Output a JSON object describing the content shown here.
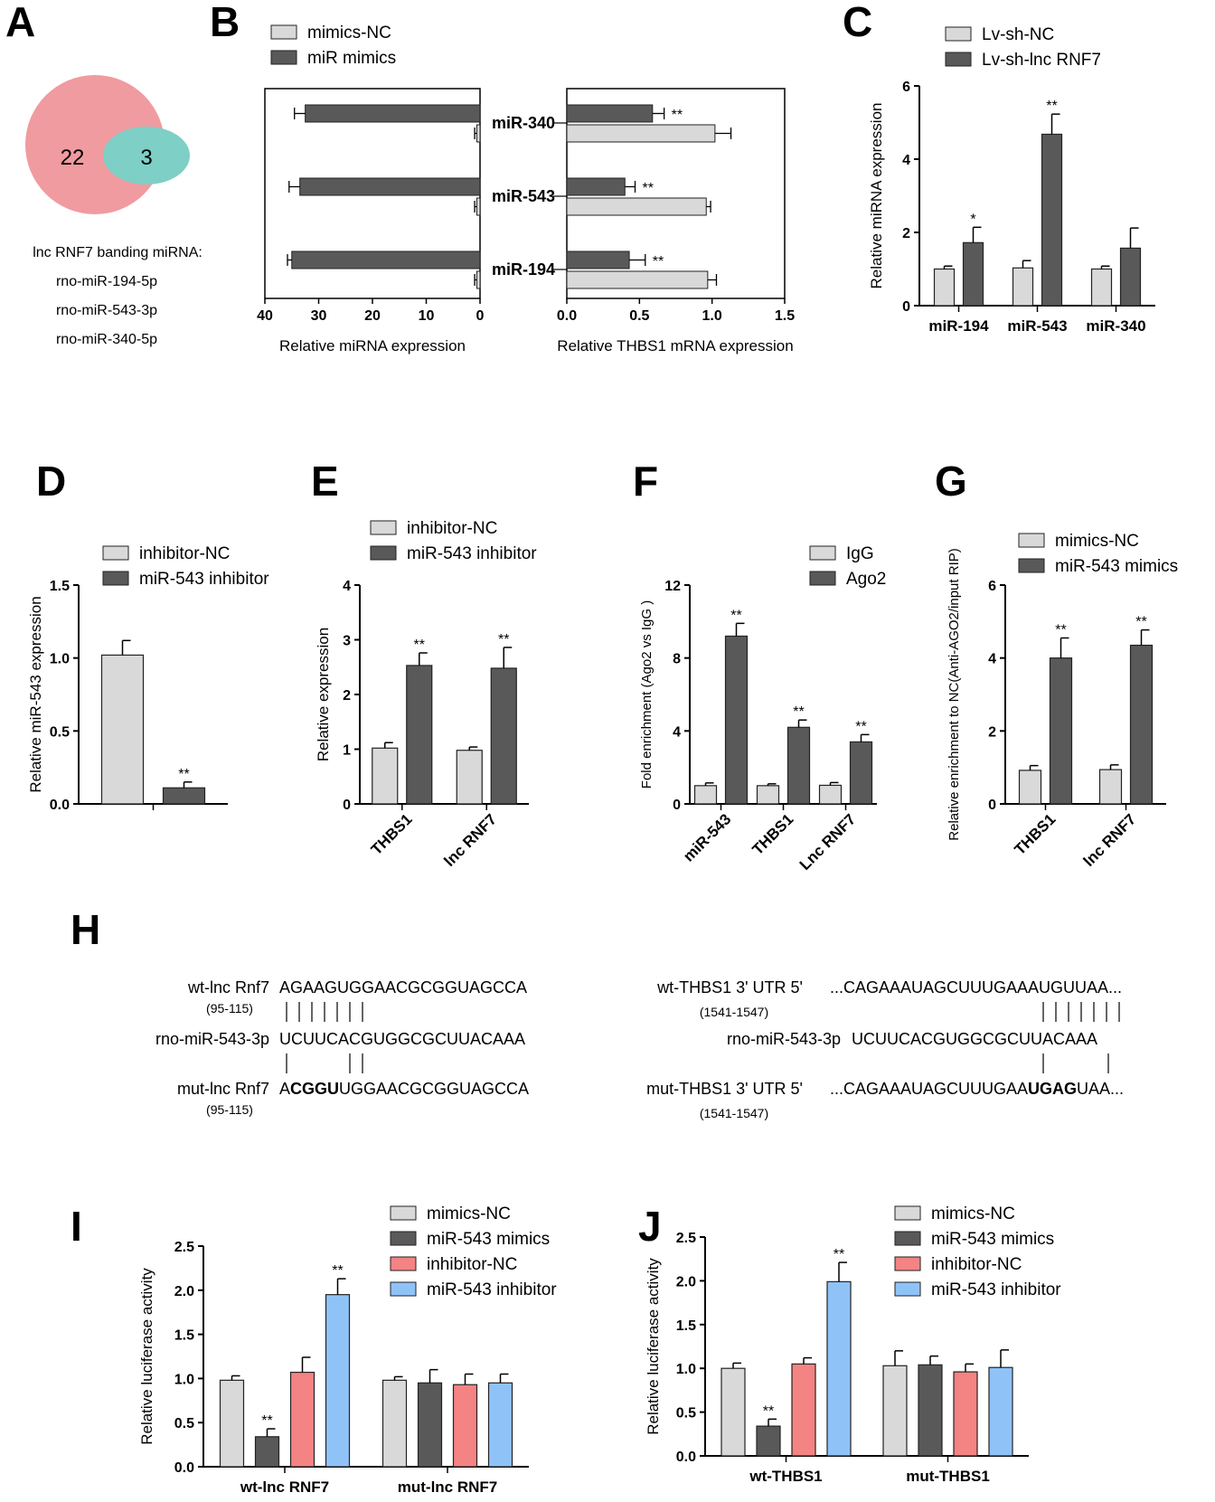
{
  "colors": {
    "light": "#d9d9d9",
    "dark": "#595959",
    "red": "#f48383",
    "blue": "#8fc3f7",
    "venn_big": "#f09ba0",
    "venn_small": "#7ecfc6"
  },
  "panels": {
    "A": "A",
    "B": "B",
    "C": "C",
    "D": "D",
    "E": "E",
    "F": "F",
    "G": "G",
    "H": "H",
    "I": "I",
    "J": "J"
  },
  "venn": {
    "left_count": "22",
    "overlap_count": "3",
    "caption": "lnc RNF7 banding miRNA:",
    "mirnas": [
      "rno-miR-194-5p",
      "rno-miR-543-3p",
      "rno-miR-340-5p"
    ]
  },
  "seq": {
    "left": {
      "wt_label": "wt-lnc Rnf7",
      "wt_seq": "AGAAGUGGAACGCGGUAGCCA",
      "wt_pos": "(95-115)",
      "mir_label": "rno-miR-543-3p",
      "mir_seq": "UCUUCACGUGGCGCUUACAAA",
      "mut_label": "mut-lnc Rnf7",
      "mut_seq_a": "A",
      "mut_seq_bold": "CGGU",
      "mut_seq_b": "UGGAACGCGGUAGCCA",
      "mut_pos": "(95-115)"
    },
    "right": {
      "wt_label": "wt-THBS1 3' UTR  5'",
      "wt_seq": "...CAGAAAUAGCUUUGAAAUGUUAA...",
      "wt_pos": "(1541-1547)",
      "mir_label": "rno-miR-543-3p",
      "mir_seq": "UCUUCACGUGGCGCUUACAAA",
      "mut_label": "mut-THBS1 3' UTR  5'",
      "mut_seq_a": "...CAGAAAUAGCUUUGAA",
      "mut_seq_bold": "UGAG",
      "mut_seq_b": "UAA...",
      "mut_pos": "(1541-1547)"
    }
  },
  "chart_data": [
    {
      "id": "B_left",
      "type": "bar",
      "orientation": "horizontal",
      "categories": [
        "miR-340",
        "miR-543",
        "miR-194"
      ],
      "series": [
        {
          "name": "mimics-NC",
          "values": [
            0.6,
            0.6,
            0.6
          ],
          "errors": [
            0.4,
            0.4,
            0.4
          ]
        },
        {
          "name": "miR mimics",
          "values": [
            32.5,
            33.5,
            35.0
          ],
          "errors": [
            2.0,
            2.0,
            0.8
          ]
        }
      ],
      "xlabel": "Relative miRNA expression",
      "xlim": [
        40,
        0
      ],
      "xticks": [
        "40",
        "30",
        "20",
        "10",
        "0"
      ],
      "sig": [
        "",
        "",
        ""
      ]
    },
    {
      "id": "B_right",
      "type": "bar",
      "orientation": "horizontal",
      "categories": [
        "miR-340",
        "miR-543",
        "miR-194"
      ],
      "series": [
        {
          "name": "mimics-NC",
          "values": [
            1.02,
            0.96,
            0.97
          ],
          "errors": [
            0.11,
            0.03,
            0.06
          ]
        },
        {
          "name": "miR mimics",
          "values": [
            0.59,
            0.4,
            0.43
          ],
          "errors": [
            0.08,
            0.07,
            0.11
          ]
        }
      ],
      "xlabel": "Relative THBS1 mRNA expression",
      "xlim": [
        0,
        1.5
      ],
      "xticks": [
        "0.0",
        "0.5",
        "1.0",
        "1.5"
      ],
      "sig": [
        "**",
        "**",
        "**"
      ]
    },
    {
      "id": "C",
      "type": "bar",
      "categories": [
        "miR-194",
        "miR-543",
        "miR-340"
      ],
      "series": [
        {
          "name": "Lv-sh-NC",
          "values": [
            1.0,
            1.03,
            1.0
          ],
          "errors": [
            0.08,
            0.2,
            0.08
          ]
        },
        {
          "name": "Lv-sh-lnc RNF7",
          "values": [
            1.72,
            4.68,
            1.57
          ],
          "errors": [
            0.42,
            0.55,
            0.55
          ]
        }
      ],
      "ylabel": "Relative miRNA expression",
      "ylim": [
        0,
        6
      ],
      "yticks": [
        "0",
        "2",
        "4",
        "6"
      ],
      "sig": [
        "*",
        "**",
        ""
      ]
    },
    {
      "id": "D",
      "type": "bar",
      "categories": [
        ""
      ],
      "series": [
        {
          "name": "inhibitor-NC",
          "values": [
            1.02
          ],
          "errors": [
            0.1
          ]
        },
        {
          "name": "miR-543 inhibitor",
          "values": [
            0.11
          ],
          "errors": [
            0.04
          ]
        }
      ],
      "ylabel": "Relative miR-543 expression",
      "ylim": [
        0,
        1.5
      ],
      "yticks": [
        "0.0",
        "0.5",
        "1.0",
        "1.5"
      ],
      "sig": [
        "**"
      ]
    },
    {
      "id": "E",
      "type": "bar",
      "categories": [
        "THBS1",
        "lnc RNF7"
      ],
      "series": [
        {
          "name": "inhibitor-NC",
          "values": [
            1.02,
            0.98
          ],
          "errors": [
            0.1,
            0.06
          ]
        },
        {
          "name": "miR-543 inhibitor",
          "values": [
            2.53,
            2.48
          ],
          "errors": [
            0.23,
            0.38
          ]
        }
      ],
      "ylabel": "Relative expression",
      "ylim": [
        0,
        4
      ],
      "yticks": [
        "0",
        "1",
        "2",
        "3",
        "4"
      ],
      "sig": [
        "**",
        "**"
      ]
    },
    {
      "id": "F",
      "type": "bar",
      "categories": [
        "miR-543",
        "THBS1",
        "Lnc RNF7"
      ],
      "series": [
        {
          "name": "IgG",
          "values": [
            1.0,
            1.0,
            1.02
          ],
          "errors": [
            0.15,
            0.1,
            0.15
          ]
        },
        {
          "name": "Ago2",
          "values": [
            9.2,
            4.2,
            3.4
          ],
          "errors": [
            0.7,
            0.4,
            0.4
          ]
        }
      ],
      "ylabel": "Fold enrichment (Ago2 vs IgG )",
      "ylim": [
        0,
        12
      ],
      "yticks": [
        "0",
        "4",
        "8",
        "12"
      ],
      "sig": [
        "**",
        "**",
        "**"
      ]
    },
    {
      "id": "G",
      "type": "bar",
      "categories": [
        "THBS1",
        "lnc RNF7"
      ],
      "series": [
        {
          "name": "mimics-NC",
          "values": [
            0.92,
            0.94
          ],
          "errors": [
            0.13,
            0.13
          ]
        },
        {
          "name": "miR-543 mimics",
          "values": [
            4.0,
            4.35
          ],
          "errors": [
            0.55,
            0.42
          ]
        }
      ],
      "ylabel": "Relative enrichment to NC(Anti-AGO2/input RIP)",
      "ylim": [
        0,
        6
      ],
      "yticks": [
        "0",
        "2",
        "4",
        "6"
      ],
      "sig": [
        "**",
        "**"
      ]
    },
    {
      "id": "I",
      "type": "bar",
      "categories": [
        "wt-lnc RNF7",
        "mut-lnc RNF7"
      ],
      "series": [
        {
          "name": "mimics-NC",
          "values": [
            0.98,
            0.98
          ],
          "errors": [
            0.05,
            0.04
          ]
        },
        {
          "name": "miR-543 mimics",
          "values": [
            0.34,
            0.95
          ],
          "errors": [
            0.09,
            0.15
          ]
        },
        {
          "name": "inhibitor-NC",
          "values": [
            1.07,
            0.93
          ],
          "errors": [
            0.17,
            0.12
          ]
        },
        {
          "name": "miR-543 inhibitor",
          "values": [
            1.95,
            0.95
          ],
          "errors": [
            0.18,
            0.1
          ]
        }
      ],
      "ylabel": "Relative luciferase activity",
      "ylim": [
        0,
        2.5
      ],
      "yticks": [
        "0.0",
        "0.5",
        "1.0",
        "1.5",
        "2.0",
        "2.5"
      ],
      "sig": [
        "**",
        ""
      ]
    },
    {
      "id": "J",
      "type": "bar",
      "categories": [
        "wt-THBS1",
        "mut-THBS1"
      ],
      "series": [
        {
          "name": "mimics-NC",
          "values": [
            1.0,
            1.03
          ],
          "errors": [
            0.06,
            0.17
          ]
        },
        {
          "name": "miR-543 mimics",
          "values": [
            0.34,
            1.04
          ],
          "errors": [
            0.08,
            0.1
          ]
        },
        {
          "name": "inhibitor-NC",
          "values": [
            1.05,
            0.96
          ],
          "errors": [
            0.07,
            0.09
          ]
        },
        {
          "name": "miR-543 inhibitor",
          "values": [
            1.99,
            1.01
          ],
          "errors": [
            0.22,
            0.2
          ]
        }
      ],
      "ylabel": "Relative luciferase activity",
      "ylim": [
        0,
        2.5
      ],
      "yticks": [
        "0.0",
        "0.5",
        "1.0",
        "1.5",
        "2.0",
        "2.5"
      ],
      "sig": [
        "**",
        ""
      ]
    }
  ]
}
